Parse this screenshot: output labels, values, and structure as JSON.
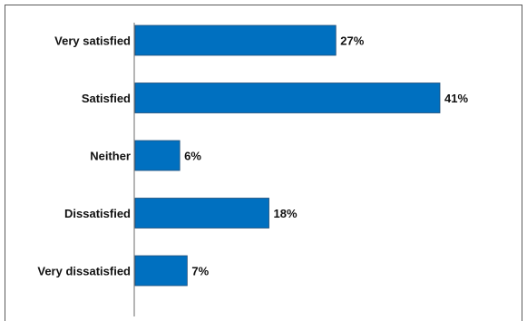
{
  "chart_data": {
    "type": "bar",
    "orientation": "horizontal",
    "categories": [
      "Very satisfied",
      "Satisfied",
      "Neither",
      "Dissatisfied",
      "Very dissatisfied"
    ],
    "values": [
      27,
      41,
      6,
      18,
      7
    ],
    "value_labels": [
      "27%",
      "41%",
      "6%",
      "18%",
      "7%"
    ],
    "xlim": [
      0,
      41
    ],
    "bar_color": "#0070C0",
    "grid": false,
    "legend": false
  }
}
